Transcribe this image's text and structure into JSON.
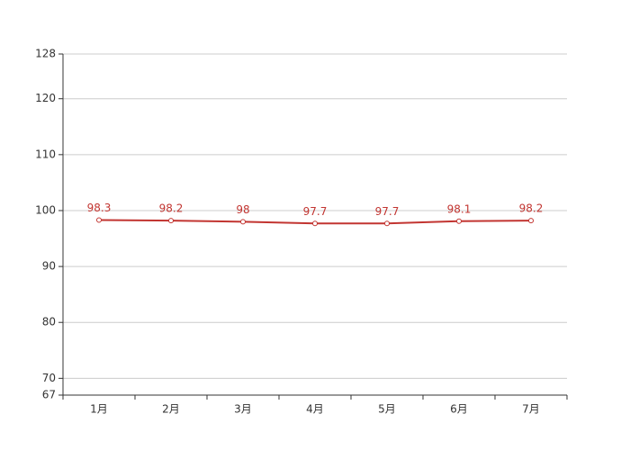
{
  "chart_data": {
    "type": "line",
    "categories": [
      "1月",
      "2月",
      "3月",
      "4月",
      "5月",
      "6月",
      "7月"
    ],
    "values": [
      98.3,
      98.2,
      98,
      97.7,
      97.7,
      98.1,
      98.2
    ],
    "color": "#c23531",
    "ylim": [
      67,
      128
    ],
    "yticks": [
      67,
      70,
      80,
      90,
      100,
      110,
      120,
      128
    ],
    "grid": true
  }
}
